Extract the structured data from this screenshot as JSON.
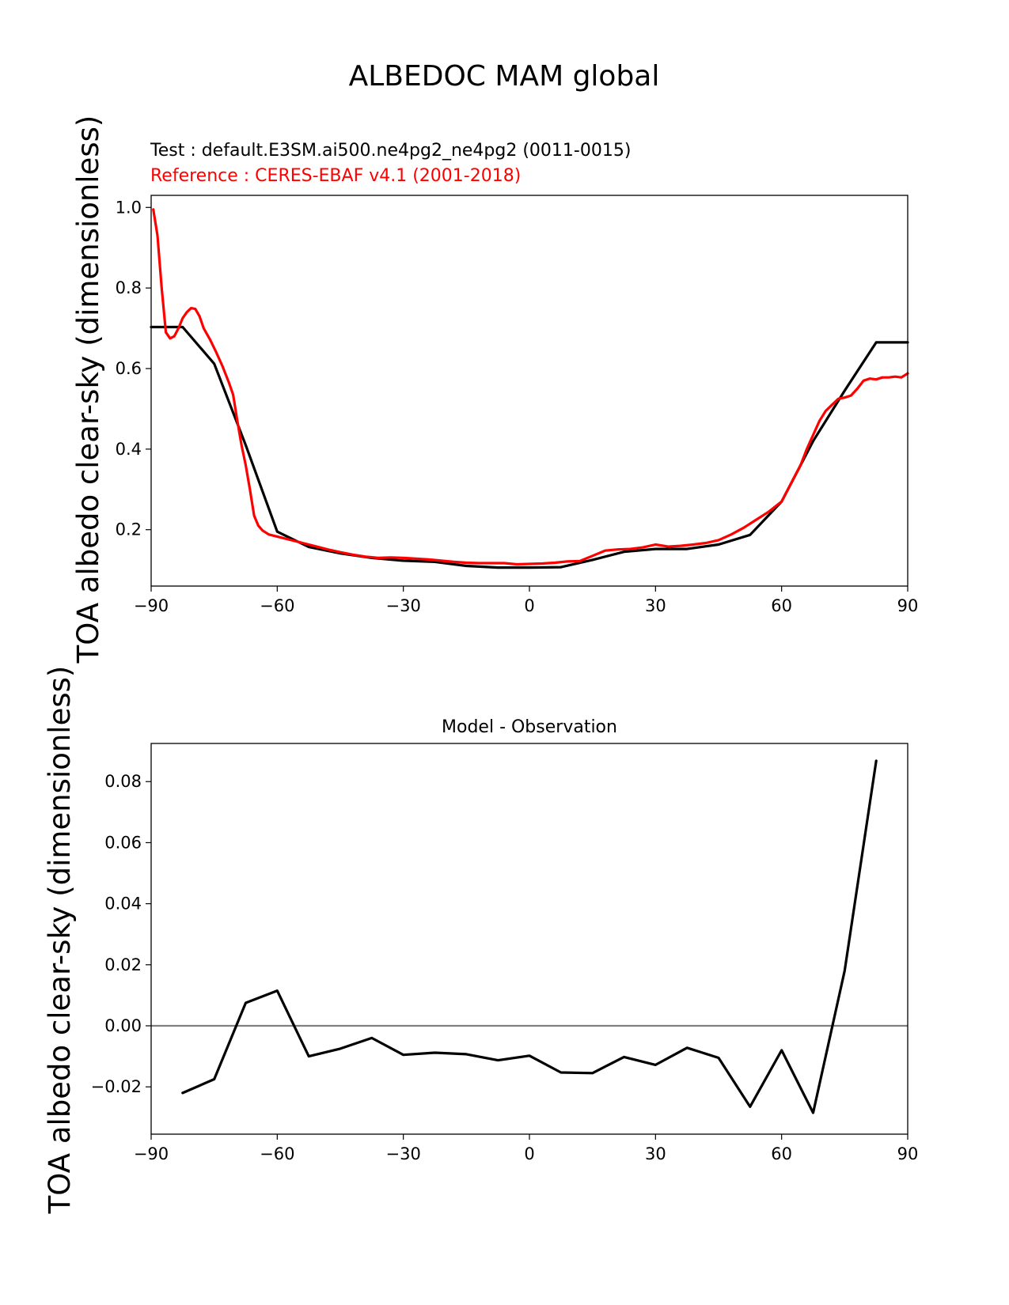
{
  "figure": {
    "suptitle": "ALBEDOC MAM global",
    "test_label": "Test : default.E3SM.ai500.ne4pg2_ne4pg2 (0011-0015)",
    "reference_label": "Reference : CERES-EBAF v4.1 (2001-2018)",
    "colors": {
      "test": "#000000",
      "reference": "#ff0000",
      "zero_line": "#808080"
    }
  },
  "chart_data": [
    {
      "type": "line",
      "ylabel": "TOA albedo clear-sky (dimensionless)",
      "xlim": [
        -90,
        90
      ],
      "ylim": [
        0.06,
        1.03
      ],
      "xticks": [
        -90,
        -60,
        -30,
        0,
        30,
        60,
        90
      ],
      "xtick_labels": [
        "−90",
        "−60",
        "−30",
        "0",
        "30",
        "60",
        "90"
      ],
      "yticks": [
        0.2,
        0.4,
        0.6,
        0.8,
        1.0
      ],
      "ytick_labels": [
        "0.2",
        "0.4",
        "0.6",
        "0.8",
        "1.0"
      ],
      "series": [
        {
          "key": "test",
          "x": [
            -90,
            -82.5,
            -75,
            -67.5,
            -60,
            -52.5,
            -45,
            -37.5,
            -30,
            -22.5,
            -15,
            -7.5,
            0,
            7.5,
            15,
            22.5,
            30,
            37.5,
            45,
            52.5,
            60,
            67.5,
            75,
            82.5,
            90
          ],
          "values": [
            0.703,
            0.703,
            0.612,
            0.41,
            0.195,
            0.157,
            0.141,
            0.13,
            0.123,
            0.12,
            0.11,
            0.106,
            0.106,
            0.107,
            0.125,
            0.145,
            0.152,
            0.152,
            0.163,
            0.187,
            0.27,
            0.42,
            0.545,
            0.665,
            0.665
          ]
        },
        {
          "key": "reference",
          "x": [
            -89.5,
            -88.5,
            -87.5,
            -86.5,
            -85.5,
            -84.5,
            -83.5,
            -82.5,
            -81.5,
            -80.5,
            -79.5,
            -78.5,
            -77.5,
            -76,
            -74.5,
            -73,
            -71.5,
            -70.5,
            -69.5,
            -68.5,
            -67.5,
            -66.5,
            -65.5,
            -64.5,
            -63.5,
            -62,
            -60,
            -57,
            -54,
            -51,
            -48,
            -45,
            -42,
            -39,
            -36,
            -33,
            -30,
            -27,
            -24,
            -21,
            -18,
            -15,
            -12,
            -9,
            -6,
            -3,
            0,
            3,
            6,
            9,
            12,
            15,
            18,
            21,
            24,
            27,
            30,
            33,
            36,
            39,
            42,
            45,
            48,
            51,
            54,
            57,
            60,
            61.5,
            63,
            64.5,
            66,
            67.5,
            69,
            70.5,
            72,
            73.5,
            75,
            76.5,
            78,
            79.5,
            81,
            82.5,
            84,
            85.5,
            87,
            88.5,
            90
          ],
          "values": [
            0.995,
            0.93,
            0.8,
            0.69,
            0.675,
            0.68,
            0.7,
            0.725,
            0.74,
            0.75,
            0.748,
            0.73,
            0.7,
            0.672,
            0.64,
            0.605,
            0.565,
            0.535,
            0.47,
            0.41,
            0.36,
            0.3,
            0.235,
            0.21,
            0.198,
            0.188,
            0.183,
            0.175,
            0.167,
            0.159,
            0.151,
            0.144,
            0.138,
            0.133,
            0.13,
            0.131,
            0.13,
            0.128,
            0.126,
            0.123,
            0.12,
            0.118,
            0.117,
            0.117,
            0.117,
            0.114,
            0.115,
            0.116,
            0.118,
            0.121,
            0.122,
            0.135,
            0.148,
            0.151,
            0.152,
            0.156,
            0.163,
            0.158,
            0.16,
            0.163,
            0.167,
            0.174,
            0.188,
            0.205,
            0.225,
            0.245,
            0.27,
            0.3,
            0.33,
            0.36,
            0.4,
            0.435,
            0.47,
            0.495,
            0.51,
            0.525,
            0.528,
            0.533,
            0.55,
            0.57,
            0.575,
            0.573,
            0.578,
            0.578,
            0.58,
            0.578,
            0.588
          ]
        }
      ]
    },
    {
      "type": "line",
      "title": "Model - Observation",
      "ylabel": "TOA albedo clear-sky (dimensionless)",
      "xlim": [
        -90,
        90
      ],
      "ylim": [
        -0.0355,
        0.0925
      ],
      "xticks": [
        -90,
        -60,
        -30,
        0,
        30,
        60,
        90
      ],
      "xtick_labels": [
        "−90",
        "−60",
        "−30",
        "0",
        "30",
        "60",
        "90"
      ],
      "yticks": [
        -0.02,
        0.0,
        0.02,
        0.04,
        0.06,
        0.08
      ],
      "ytick_labels": [
        "−0.02",
        "0.00",
        "0.02",
        "0.04",
        "0.06",
        "0.08"
      ],
      "zero_line": 0.0,
      "series": [
        {
          "key": "diff",
          "x": [
            -82.5,
            -75,
            -67.5,
            -60,
            -52.5,
            -45,
            -37.5,
            -30,
            -22.5,
            -15,
            -7.5,
            0,
            7.5,
            15,
            22.5,
            30,
            37.5,
            45,
            52.5,
            60,
            67.5,
            75,
            82.5
          ],
          "values": [
            -0.022,
            -0.0175,
            0.0075,
            0.0115,
            -0.01,
            -0.0075,
            -0.004,
            -0.0095,
            -0.0088,
            -0.0093,
            -0.0113,
            -0.0098,
            -0.0153,
            -0.0155,
            -0.0102,
            -0.0128,
            -0.0072,
            -0.0105,
            -0.0265,
            -0.008,
            -0.0285,
            0.018,
            0.0868
          ]
        }
      ]
    }
  ]
}
